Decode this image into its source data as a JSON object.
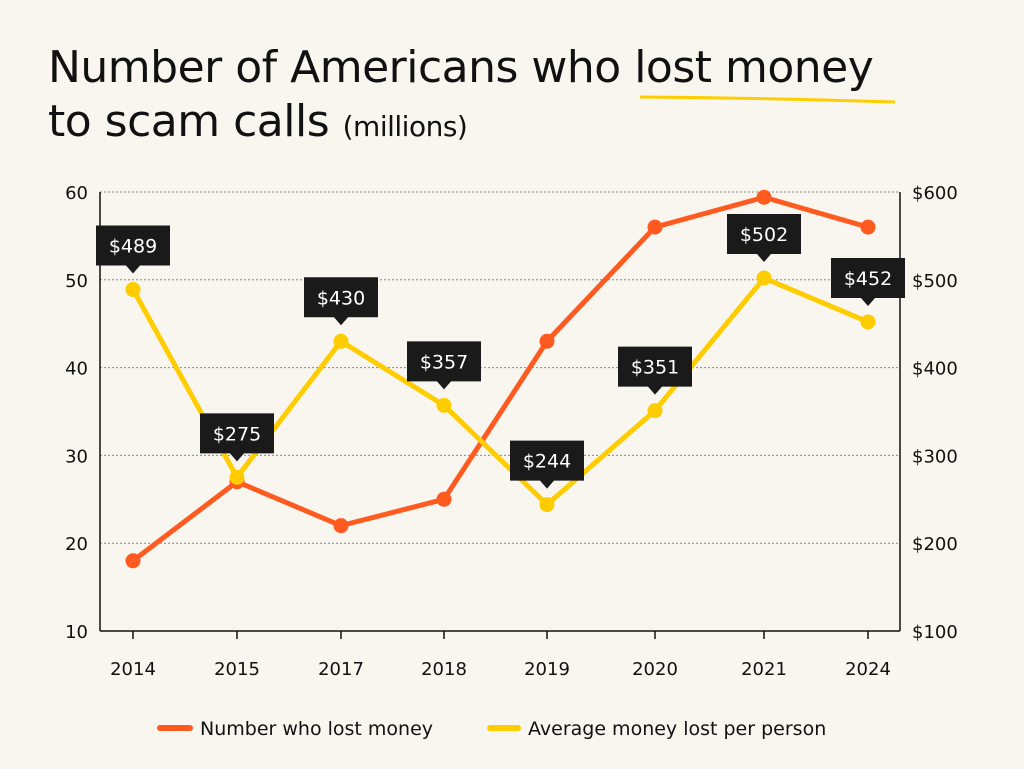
{
  "title_line1": "Number of Americans who lost money",
  "title_line2": "to scam calls",
  "title_unit": "(millions)",
  "colors": {
    "number": "#ff5a1f",
    "average": "#ffcc00",
    "callout": "#1a1a1a",
    "background": "#f9f6f0"
  },
  "chart_data": {
    "type": "line",
    "categories": [
      "2014",
      "2015",
      "2017",
      "2018",
      "2019",
      "2020",
      "2021",
      "2024"
    ],
    "y_left": {
      "ylim": [
        10,
        60
      ],
      "ticks": [
        "60",
        "50",
        "40",
        "30",
        "20",
        "10"
      ]
    },
    "y_right": {
      "ylim": [
        100,
        600
      ],
      "ticks": [
        "$600",
        "$500",
        "$400",
        "$300",
        "$200",
        "$100"
      ]
    },
    "grid": true,
    "legend": "bottom",
    "series": [
      {
        "name": "Number who lost money",
        "axis": "left",
        "values": [
          18,
          27,
          22,
          25,
          43,
          56,
          59.4,
          56
        ]
      },
      {
        "name": "Average money lost per person",
        "axis": "right",
        "values": [
          489,
          275,
          430,
          357,
          244,
          351,
          502,
          452
        ],
        "labels": [
          "$489",
          "$275",
          "$430",
          "$357",
          "$244",
          "$351",
          "$502",
          "$452"
        ]
      }
    ]
  }
}
